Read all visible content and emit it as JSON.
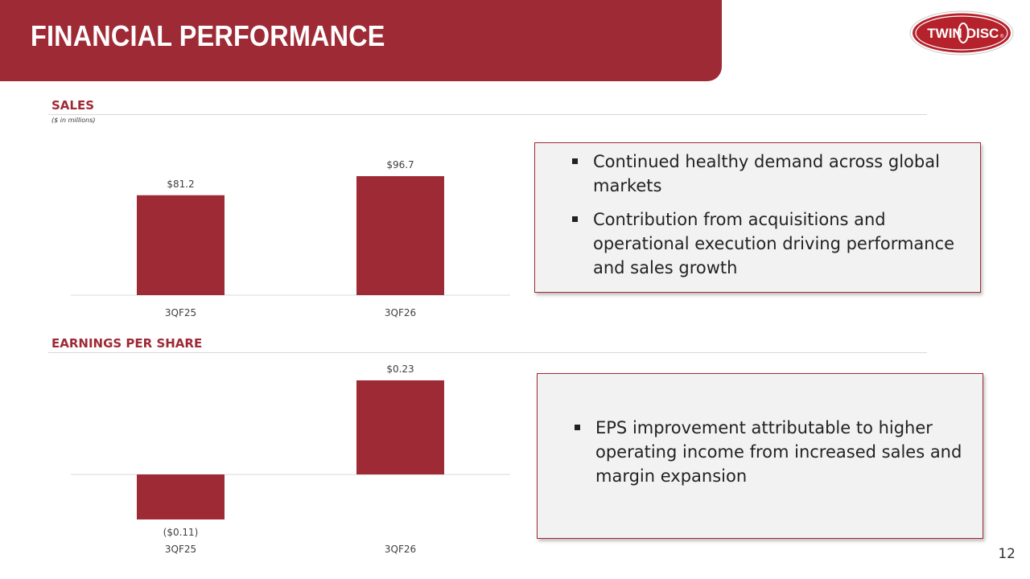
{
  "header": {
    "title": "FINANCIAL PERFORMANCE"
  },
  "logo": {
    "text_left": "TWIN",
    "text_right": "DISC",
    "mark": "®"
  },
  "colors": {
    "brand": "#9e2a35",
    "box_bg": "#f2f2f2"
  },
  "sales_section": {
    "title": "SALES",
    "subtitle": "($ in millions)"
  },
  "eps_section": {
    "title": "EARNINGS PER SHARE"
  },
  "chart_data": [
    {
      "type": "bar",
      "title": "SALES",
      "subtitle": "($ in millions)",
      "categories": [
        "3QF25",
        "3QF26"
      ],
      "values": [
        81.2,
        96.7
      ],
      "data_labels": [
        "$81.2",
        "$96.7"
      ],
      "ylim": [
        0,
        100
      ],
      "grid": false,
      "color": "#9e2a35"
    },
    {
      "type": "bar",
      "title": "EARNINGS PER SHARE",
      "categories": [
        "3QF25",
        "3QF26"
      ],
      "values": [
        -0.11,
        0.23
      ],
      "data_labels": [
        "($0.11)",
        "$0.23"
      ],
      "ylim": [
        -0.11,
        0.23
      ],
      "grid": false,
      "color": "#9e2a35"
    }
  ],
  "sales_box": {
    "bullets": [
      "Continued healthy demand across global markets",
      "Contribution from acquisitions and operational execution driving performance and sales growth"
    ]
  },
  "eps_box": {
    "bullets": [
      "EPS improvement attributable to higher operating income from increased sales and margin expansion"
    ]
  },
  "page_number": "12"
}
